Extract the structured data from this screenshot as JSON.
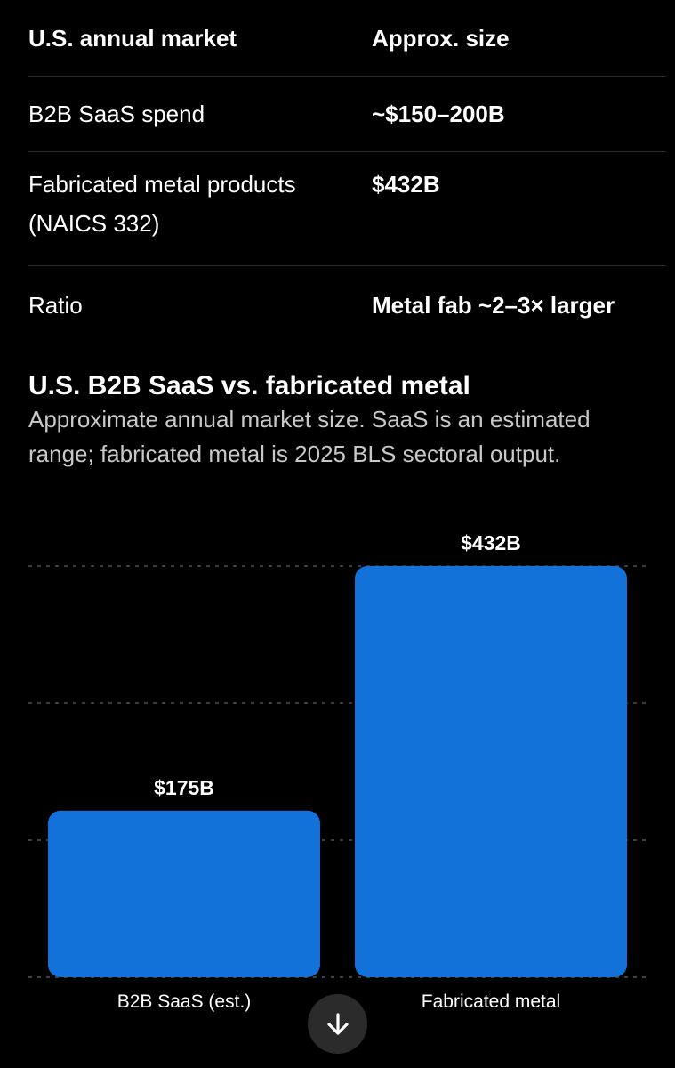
{
  "table": {
    "headers": [
      "U.S. annual market",
      "Approx. size"
    ],
    "rows": [
      {
        "market": "B2B SaaS spend",
        "size": "~$150–200B"
      },
      {
        "market": "Fabricated metal products (NAICS 332)",
        "size": "$432B"
      },
      {
        "market": "Ratio",
        "size": "Metal fab ~2–3× larger"
      }
    ]
  },
  "chart_data": {
    "type": "bar",
    "title": "U.S. B2B SaaS vs. fabricated metal",
    "subtitle": "Approximate annual market size. SaaS is an estimated range; fabricated metal is 2025 BLS sectoral output.",
    "categories": [
      "B2B SaaS (est.)",
      "Fabricated metal"
    ],
    "values": [
      175,
      432
    ],
    "value_labels": [
      "$175B",
      "$432B"
    ],
    "ylim": [
      0,
      450
    ],
    "grid": true,
    "bar_color": "#1272d9"
  },
  "colors": {
    "background": "#000000",
    "text": "#ffffff",
    "subtitle": "#c8c8c8",
    "accent": "#1272d9"
  },
  "icons": {
    "scroll_down": "arrow-down-icon"
  }
}
